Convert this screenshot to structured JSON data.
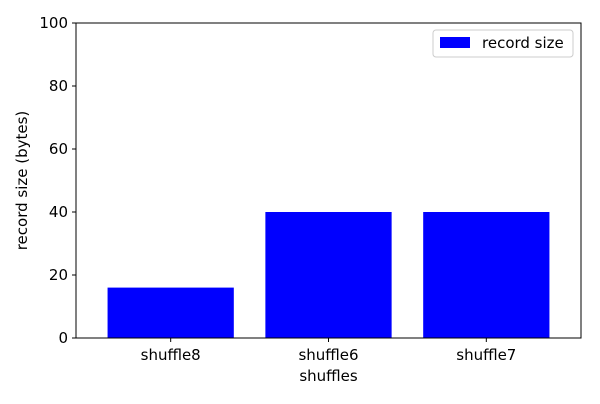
{
  "colors": {
    "background": "#ffffff",
    "bar": "#0000ff",
    "axis": "#000000"
  },
  "chart_data": {
    "type": "bar",
    "title": "",
    "xlabel": "shuffles",
    "ylabel": "record size (bytes)",
    "categories": [
      "shuffle8",
      "shuffle6",
      "shuffle7"
    ],
    "series": [
      {
        "name": "record size",
        "values": [
          16,
          40,
          40
        ],
        "color": "#0000ff"
      }
    ],
    "ylim": [
      0,
      100
    ],
    "yticks": [
      0,
      20,
      40,
      60,
      80,
      100
    ],
    "grid": false,
    "legend_position": "top-right"
  }
}
